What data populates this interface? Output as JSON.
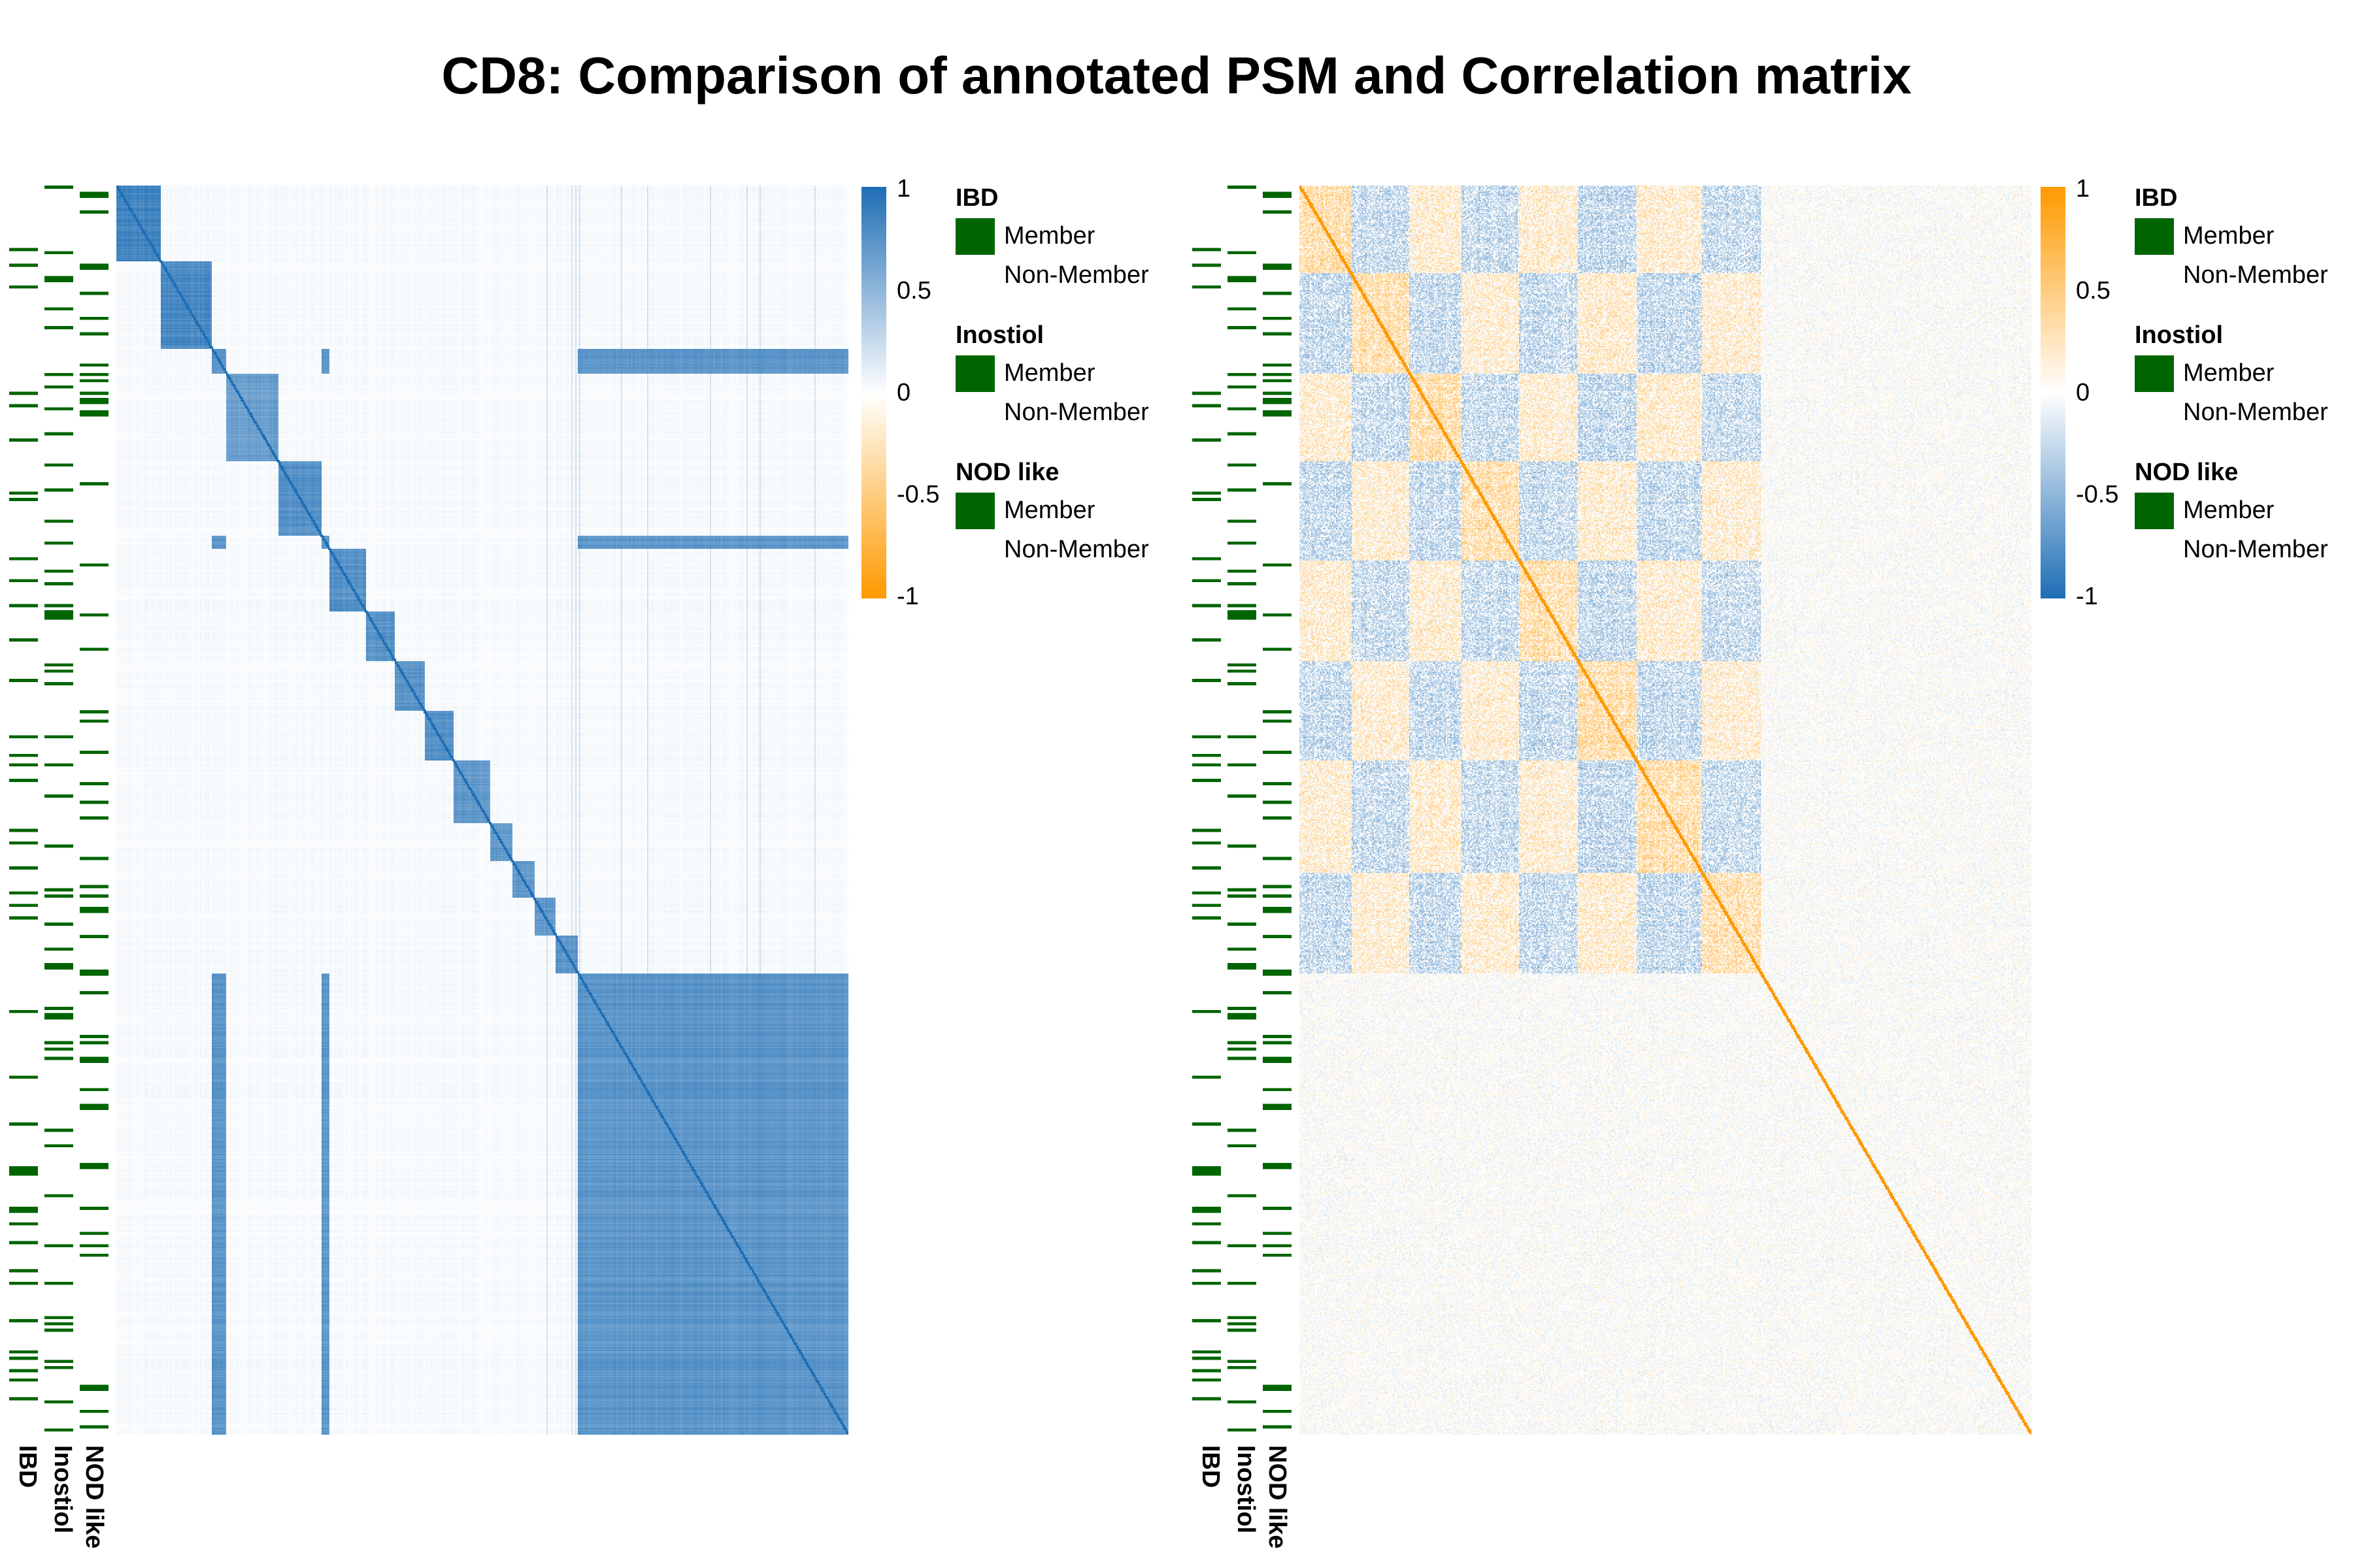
{
  "title": "CD8: Comparison of annotated PSM and Correlation matrix",
  "colors": {
    "member": "#006400",
    "psm_high": "#1F6EB5",
    "psm_low": "#FF9900",
    "cor_high": "#FF9900",
    "cor_low": "#1F6EB5",
    "mid": "#FFFFFF"
  },
  "annotations": [
    "IBD",
    "Inostiol",
    "NOD like"
  ],
  "legend": {
    "groups": [
      {
        "title": "IBD",
        "items": [
          "Member",
          "Non-Member"
        ]
      },
      {
        "title": "Inostiol",
        "items": [
          "Member",
          "Non-Member"
        ]
      },
      {
        "title": "NOD like",
        "items": [
          "Member",
          "Non-Member"
        ]
      }
    ],
    "ticks": [
      "1",
      "0.5",
      "0",
      "-0.5",
      "-1"
    ]
  },
  "chart_data": [
    {
      "type": "heatmap",
      "name": "PSM",
      "color_scale": {
        "min": -1,
        "max": 1,
        "low_color": "#FF9900",
        "mid_color": "#FFFFFF",
        "high_color": "#1F6EB5"
      },
      "clusters": [
        {
          "from": 0.0,
          "to": 0.06,
          "value": 0.95
        },
        {
          "from": 0.06,
          "to": 0.13,
          "value": 0.92
        },
        {
          "from": 0.15,
          "to": 0.22,
          "value": 0.75
        },
        {
          "from": 0.22,
          "to": 0.28,
          "value": 0.85
        },
        {
          "from": 0.29,
          "to": 0.34,
          "value": 0.85
        },
        {
          "from": 0.34,
          "to": 0.38,
          "value": 0.85
        },
        {
          "from": 0.38,
          "to": 0.42,
          "value": 0.85
        },
        {
          "from": 0.42,
          "to": 0.46,
          "value": 0.85
        },
        {
          "from": 0.46,
          "to": 0.51,
          "value": 0.8
        },
        {
          "from": 0.51,
          "to": 0.54,
          "value": 0.8
        },
        {
          "from": 0.54,
          "to": 0.57,
          "value": 0.8
        },
        {
          "from": 0.57,
          "to": 0.6,
          "value": 0.8
        },
        {
          "from": 0.6,
          "to": 0.63,
          "value": 0.8
        },
        {
          "from": 0.63,
          "to": 1.0,
          "value": 0.82
        }
      ]
    },
    {
      "type": "heatmap",
      "name": "Correlation",
      "color_scale": {
        "min": -1,
        "max": 1,
        "low_color": "#1F6EB5",
        "mid_color": "#FFFFFF",
        "high_color": "#FF9900"
      },
      "structured_fraction": 0.63,
      "diagonal": 1
    }
  ]
}
